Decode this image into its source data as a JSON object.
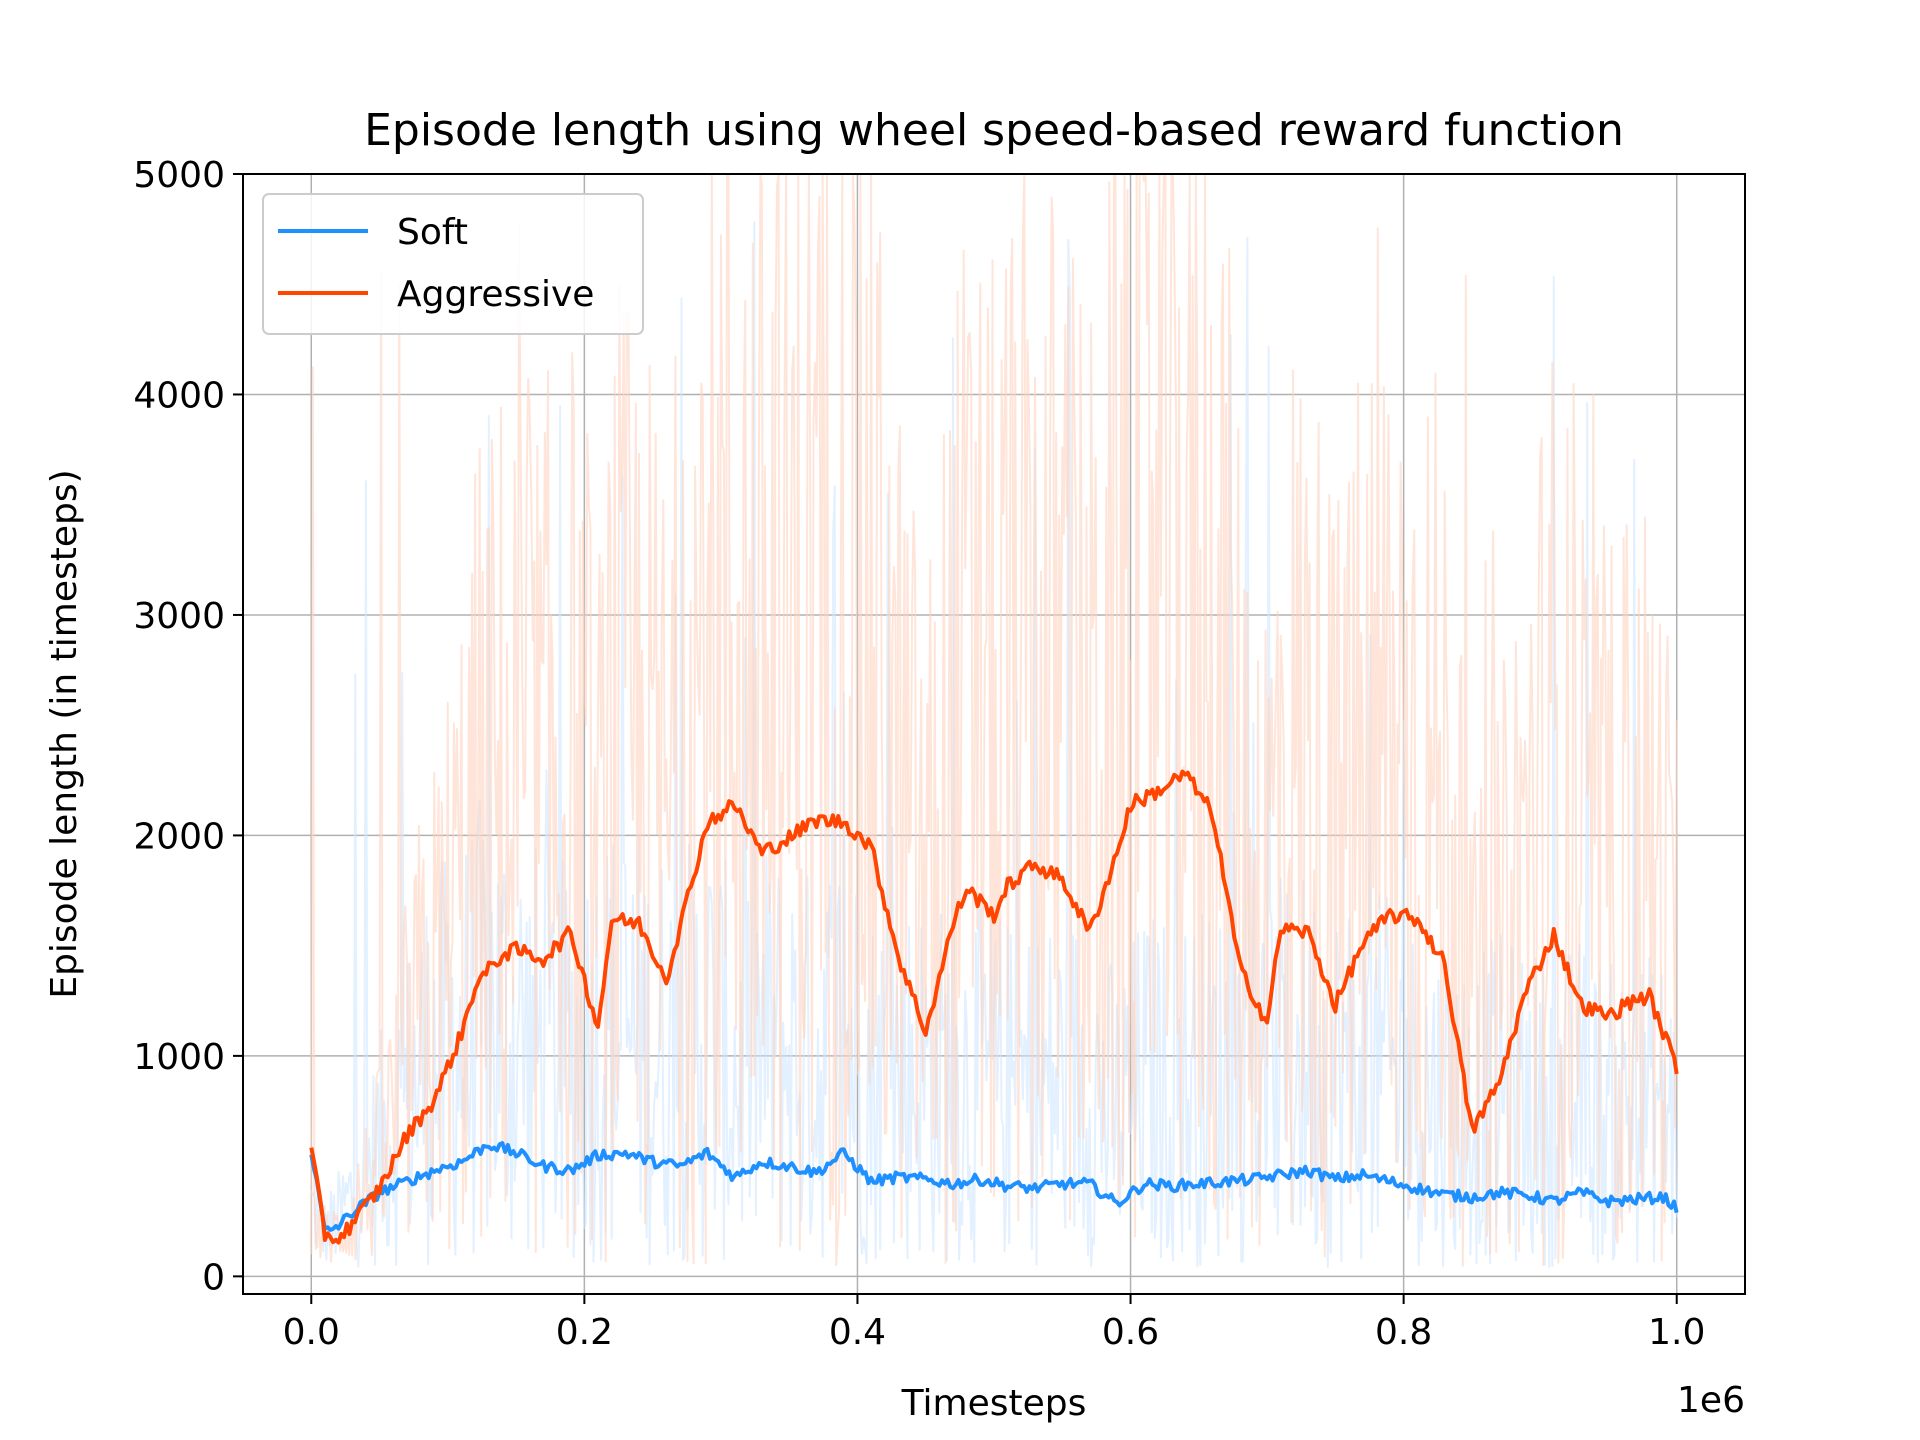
{
  "chart_data": {
    "type": "line",
    "title": "Episode length using wheel speed-based reward function",
    "xlabel": "Timesteps",
    "ylabel": "Episode length (in timesteps)",
    "x_offset_label": "1e6",
    "xlim": [
      -0.05,
      1.05
    ],
    "ylim": [
      -80,
      5000
    ],
    "x_ticks": [
      0.0,
      0.2,
      0.4,
      0.6,
      0.8,
      1.0
    ],
    "x_tick_labels": [
      "0.0",
      "0.2",
      "0.4",
      "0.6",
      "0.8",
      "1.0"
    ],
    "y_ticks": [
      0,
      1000,
      2000,
      3000,
      4000,
      5000
    ],
    "y_tick_labels": [
      "0",
      "1000",
      "2000",
      "3000",
      "4000",
      "5000"
    ],
    "grid": true,
    "legend_position": "top-left",
    "x_scale_note": "x values in units of 1e6 timesteps",
    "series": [
      {
        "name": "Soft",
        "color": "#1e90ff",
        "raw_color": "#cfe6ff",
        "x": [
          0.0,
          0.01,
          0.02,
          0.03,
          0.05,
          0.07,
          0.09,
          0.11,
          0.13,
          0.15,
          0.17,
          0.19,
          0.21,
          0.23,
          0.25,
          0.27,
          0.29,
          0.31,
          0.33,
          0.35,
          0.37,
          0.39,
          0.41,
          0.43,
          0.45,
          0.47,
          0.49,
          0.51,
          0.53,
          0.55,
          0.57,
          0.59,
          0.61,
          0.63,
          0.65,
          0.67,
          0.69,
          0.71,
          0.73,
          0.75,
          0.77,
          0.79,
          0.81,
          0.83,
          0.85,
          0.87,
          0.89,
          0.91,
          0.93,
          0.95,
          0.97,
          0.99,
          1.0
        ],
        "y": [
          570,
          200,
          230,
          290,
          380,
          430,
          480,
          520,
          600,
          560,
          500,
          480,
          550,
          560,
          520,
          500,
          560,
          450,
          520,
          500,
          470,
          560,
          430,
          450,
          440,
          420,
          440,
          410,
          400,
          420,
          420,
          330,
          420,
          410,
          420,
          430,
          440,
          460,
          480,
          440,
          460,
          430,
          400,
          370,
          360,
          380,
          370,
          340,
          380,
          340,
          350,
          360,
          310
        ]
      },
      {
        "name": "Aggressive",
        "color": "#ff4500",
        "raw_color": "#ffd3bf",
        "x": [
          0.0,
          0.01,
          0.02,
          0.03,
          0.05,
          0.07,
          0.09,
          0.11,
          0.12,
          0.14,
          0.15,
          0.17,
          0.19,
          0.21,
          0.22,
          0.24,
          0.26,
          0.28,
          0.29,
          0.31,
          0.33,
          0.35,
          0.37,
          0.39,
          0.41,
          0.43,
          0.45,
          0.47,
          0.48,
          0.5,
          0.51,
          0.53,
          0.55,
          0.57,
          0.59,
          0.6,
          0.62,
          0.64,
          0.66,
          0.68,
          0.7,
          0.71,
          0.73,
          0.75,
          0.77,
          0.79,
          0.81,
          0.83,
          0.85,
          0.87,
          0.88,
          0.89,
          0.91,
          0.93,
          0.95,
          0.97,
          0.98,
          1.0
        ],
        "y": [
          570,
          190,
          170,
          240,
          400,
          640,
          800,
          1100,
          1320,
          1460,
          1480,
          1440,
          1560,
          1130,
          1620,
          1600,
          1350,
          1820,
          2060,
          2140,
          1920,
          1990,
          2070,
          2060,
          1950,
          1450,
          1110,
          1600,
          1760,
          1640,
          1770,
          1870,
          1800,
          1560,
          1920,
          2140,
          2200,
          2280,
          2100,
          1400,
          1150,
          1580,
          1560,
          1230,
          1510,
          1640,
          1620,
          1420,
          660,
          880,
          1100,
          1300,
          1550,
          1230,
          1180,
          1260,
          1270,
          950
        ]
      }
    ]
  }
}
